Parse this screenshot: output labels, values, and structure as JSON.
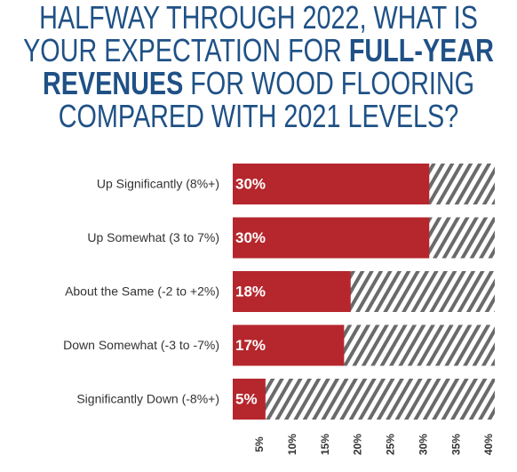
{
  "chart_data": {
    "type": "hbar",
    "title_lines": [
      [
        {
          "text": "HALFWAY THROUGH 2022, WHAT IS",
          "bold": false
        }
      ],
      [
        {
          "text": "YOUR EXPECTATION FOR ",
          "bold": false
        },
        {
          "text": "FULL-YEAR",
          "bold": true
        }
      ],
      [
        {
          "text": "REVENUES",
          "bold": true
        },
        {
          "text": " FOR WOOD FLOORING",
          "bold": false
        }
      ],
      [
        {
          "text": "COMPARED WITH 2021 LEVELS?",
          "bold": false
        }
      ]
    ],
    "categories": [
      "Up Significantly (8%+)",
      "Up Somewhat (3 to 7%)",
      "About the Same (-2 to +2%)",
      "Down Somewhat (-3 to -7%)",
      "Significantly Down (-8%+)"
    ],
    "values": [
      30,
      30,
      18,
      17,
      5
    ],
    "value_labels": [
      "30%",
      "30%",
      "18%",
      "17%",
      "5%"
    ],
    "color": "#b5272d",
    "xlim": [
      0,
      40
    ],
    "xticks": [
      {
        "value": 5,
        "label": "5%"
      },
      {
        "value": 10,
        "label": "10%"
      },
      {
        "value": 15,
        "label": "15%"
      },
      {
        "value": 20,
        "label": "20%"
      },
      {
        "value": 25,
        "label": "25%"
      },
      {
        "value": 30,
        "label": "30%"
      },
      {
        "value": 35,
        "label": "35%"
      },
      {
        "value": 40,
        "label": "40%"
      }
    ]
  }
}
